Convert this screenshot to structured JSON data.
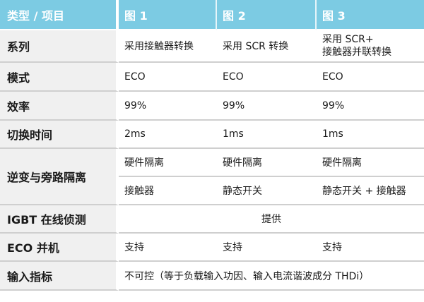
{
  "header": [
    "类型 / 项目",
    "图 1",
    "图 2",
    "图 3"
  ],
  "rows": {
    "series": {
      "label": "系列",
      "values": [
        "采用接触器转换",
        "采用 SCR 转换",
        "采用 SCR+\n接触器并联转换"
      ]
    },
    "mode": {
      "label": "模式",
      "values": [
        "ECO",
        "ECO",
        "ECO"
      ]
    },
    "efficiency": {
      "label": "效率",
      "values": [
        "99%",
        "99%",
        "99%"
      ]
    },
    "switch_time": {
      "label": "切换时间",
      "values": [
        "2ms",
        "1ms",
        "1ms"
      ]
    },
    "isolation": {
      "label": "逆变与旁路隔离",
      "values_a": [
        "硬件隔离",
        "硬件隔离",
        "硬件隔离"
      ],
      "values_b": [
        "接触器",
        "静态开关",
        "静态开关 + 接触器"
      ]
    },
    "igbt": {
      "label": "IGBT 在线侦测",
      "value": "提供"
    },
    "eco_parallel": {
      "label": "ECO 并机",
      "values": [
        "支持",
        "支持",
        "支持"
      ]
    },
    "input": {
      "label": "输入指标",
      "value": "不可控（等于负载输入功因、输入电流谐波成分 THDi）"
    }
  },
  "colors": {
    "header_bg": "#7ccbe3",
    "label_bg": "#f0f0f0",
    "divider": "#cfcfcf"
  }
}
